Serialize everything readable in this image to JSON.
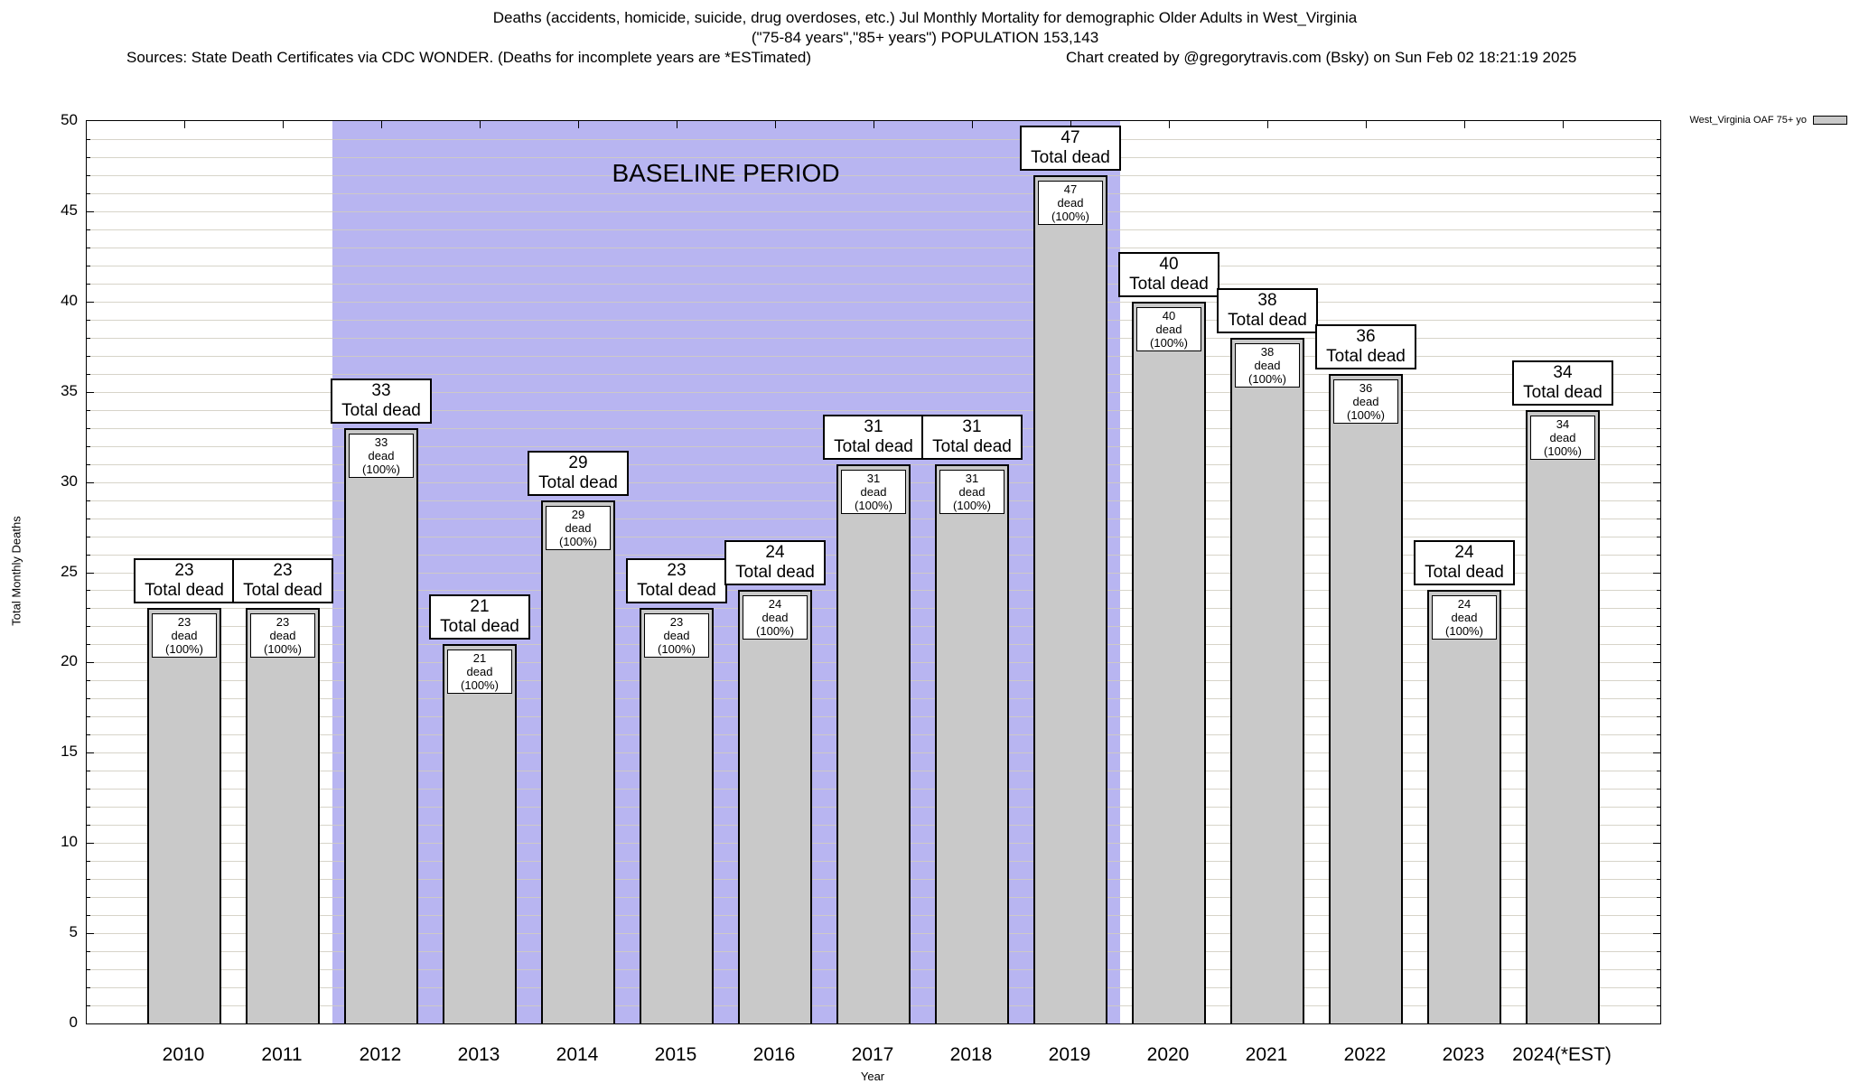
{
  "header": {
    "title_line1": "Deaths (accidents, homicide, suicide, drug overdoses, etc.) Jul Monthly Mortality for demographic Older Adults in West_Virginia",
    "title_line2": "(\"75-84 years\",\"85+ years\") POPULATION 153,143",
    "sources": "Sources: State Death Certificates via CDC WONDER. (Deaths for incomplete years are *ESTimated)",
    "credit": "Chart created by @gregorytravis.com (Bsky) on Sun Feb 02 18:21:19 2025"
  },
  "legend": {
    "label": "West_Virginia OAF 75+ yo",
    "swatch_color": "#c9c9c9"
  },
  "chart_data": {
    "type": "bar",
    "title": "Deaths (accidents, homicide, suicide, drug overdoses, etc.) Jul Monthly Mortality for demographic Older Adults in West_Virginia (\"75-84 years\",\"85+ years\") POPULATION 153,143",
    "xlabel": "Year",
    "ylabel": "Total Monthly Deaths",
    "ylim": [
      0,
      50
    ],
    "ytick_major_interval": 5,
    "ytick_minor_interval": 1,
    "ytick_labels": [
      "0",
      "5",
      "10",
      "15",
      "20",
      "25",
      "30",
      "35",
      "40",
      "45",
      "50"
    ],
    "grid": "horizontal-minor",
    "legend_position": "top-right",
    "categories": [
      "2010",
      "2011",
      "2012",
      "2013",
      "2014",
      "2015",
      "2016",
      "2017",
      "2018",
      "2019",
      "2020",
      "2021",
      "2022",
      "2023",
      "2024(*EST)"
    ],
    "values": [
      23,
      23,
      33,
      21,
      29,
      23,
      24,
      31,
      31,
      47,
      40,
      38,
      36,
      24,
      34
    ],
    "series_name": "West_Virginia OAF 75+ yo",
    "bar_outer_label_suffix": "Total dead",
    "bar_inner_label_suffix": "dead (100%)",
    "annotations": [
      {
        "text": "BASELINE PERIOD",
        "start_category": "2012",
        "end_category": "2019"
      }
    ],
    "colors": {
      "bar_fill": "#c9c9c9",
      "baseline_region": "#b8b5f1",
      "gridline": "#d0cdc0",
      "text": "#000000"
    }
  }
}
